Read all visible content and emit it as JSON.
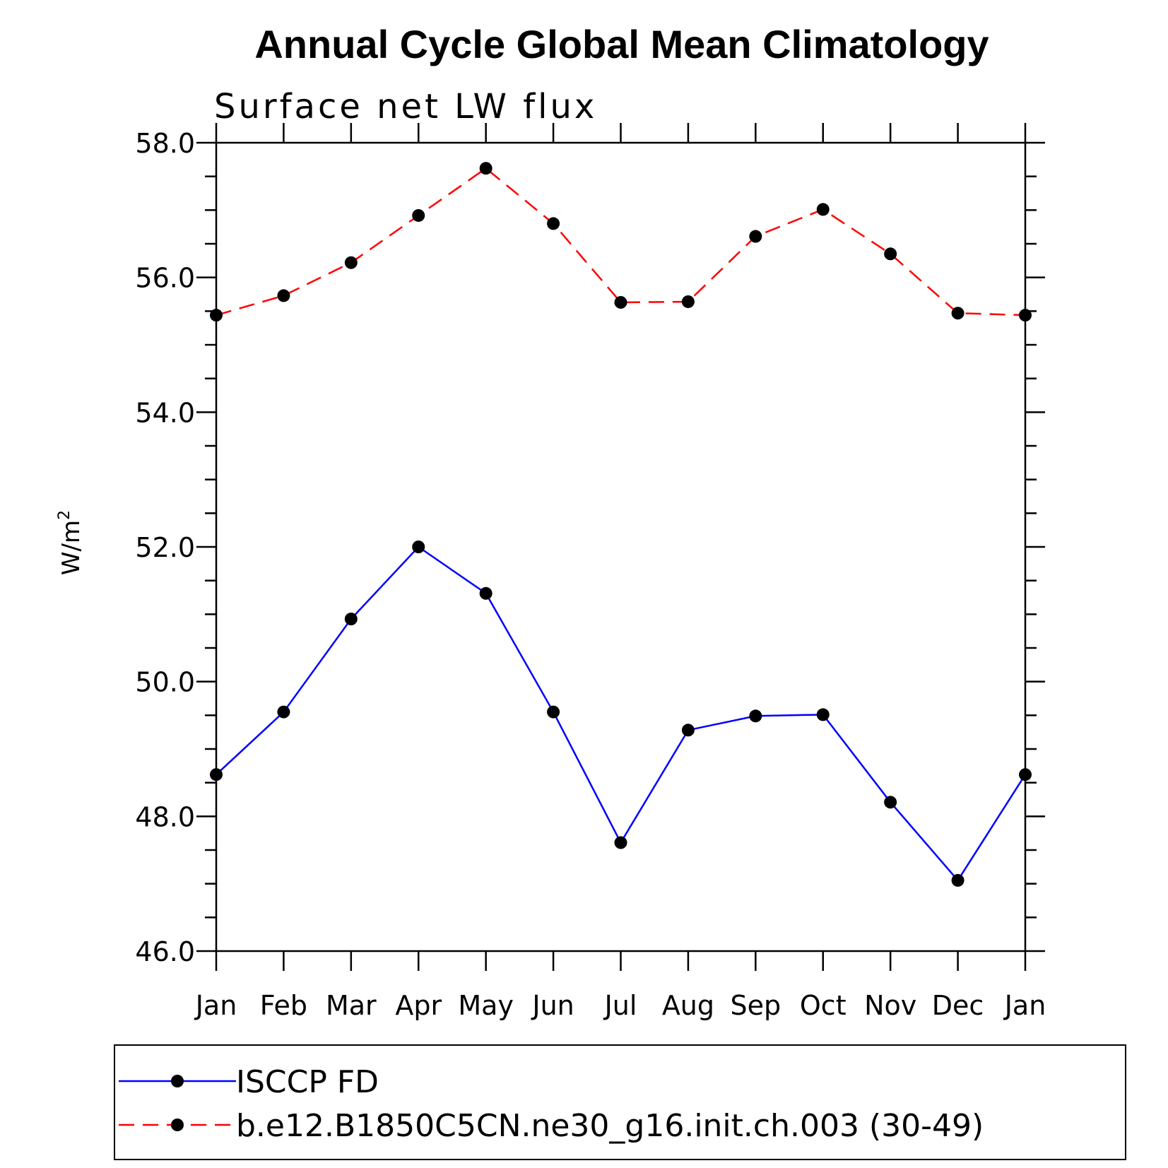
{
  "chart_data": {
    "type": "line",
    "title": "Annual Cycle Global Mean Climatology",
    "subtitle": "Surface net LW flux",
    "ylabel": "W/m",
    "ylabel_superscript": "2",
    "xlabel": "",
    "categories": [
      "Jan",
      "Feb",
      "Mar",
      "Apr",
      "May",
      "Jun",
      "Jul",
      "Aug",
      "Sep",
      "Oct",
      "Nov",
      "Dec",
      "Jan"
    ],
    "ylim": [
      46.0,
      58.0
    ],
    "yticks": [
      "46.0",
      "48.0",
      "50.0",
      "52.0",
      "54.0",
      "56.0",
      "58.0"
    ],
    "grid": false,
    "legend_position": "bottom",
    "series": [
      {
        "name": "ISCCP FD",
        "color": "#0000ff",
        "line_style": "solid",
        "marker": "filled-circle",
        "values": [
          48.62,
          49.55,
          50.93,
          52.0,
          51.31,
          49.55,
          47.61,
          49.28,
          49.49,
          49.51,
          48.21,
          47.05,
          48.62
        ]
      },
      {
        "name": "b.e12.B1850C5CN.ne30_g16.init.ch.003 (30-49)",
        "color": "#ff0000",
        "line_style": "dashed",
        "marker": "filled-circle",
        "values": [
          55.44,
          55.73,
          56.22,
          56.92,
          57.62,
          56.8,
          55.63,
          55.64,
          56.61,
          57.01,
          56.35,
          55.47,
          55.44
        ]
      }
    ]
  }
}
